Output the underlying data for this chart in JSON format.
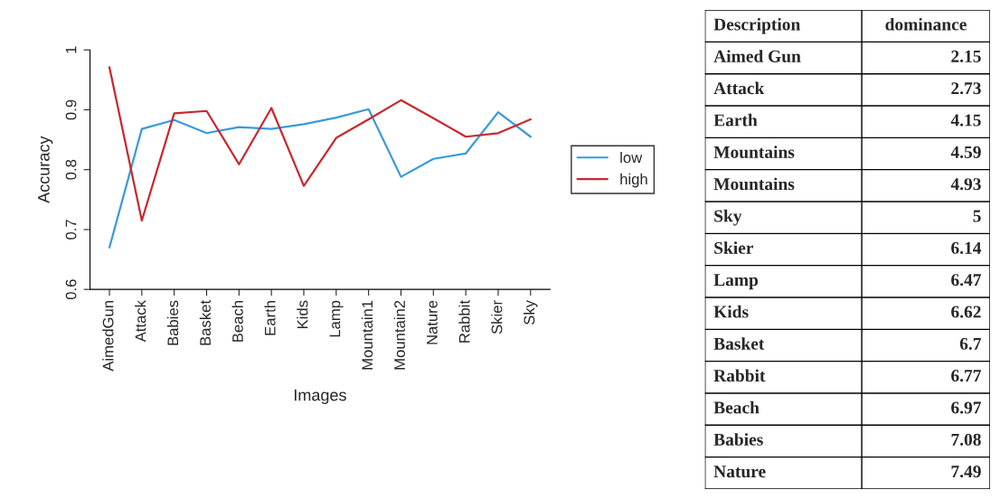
{
  "chart_data": [
    {
      "type": "line",
      "xlabel": "Images",
      "ylabel": "Accuracy",
      "categories": [
        "AimedGun",
        "Attack",
        "Babies",
        "Basket",
        "Beach",
        "Earth",
        "Kids",
        "Lamp",
        "Mountain1",
        "Mountain2",
        "Nature",
        "Rabbit",
        "Skier",
        "Sky"
      ],
      "series": [
        {
          "name": "low",
          "color": "#3a9ad9",
          "values": [
            0.67,
            0.868,
            0.883,
            0.861,
            0.871,
            0.868,
            0.876,
            0.887,
            0.901,
            0.788,
            0.818,
            0.827,
            0.896,
            0.855
          ]
        },
        {
          "name": "high",
          "color": "#c8282e",
          "values": [
            0.971,
            0.715,
            0.894,
            0.898,
            0.809,
            0.903,
            0.773,
            0.853,
            0.884,
            0.916,
            0.886,
            0.855,
            0.861,
            0.884
          ]
        }
      ],
      "ylim": [
        0.6,
        1
      ],
      "yticks": [
        0.6,
        0.7,
        0.8,
        0.9,
        1
      ],
      "grid": false,
      "legend": "right",
      "marker": "none",
      "line_style": "solid"
    },
    {
      "type": "other",
      "xlabel": "Description",
      "ylabel": "dominance",
      "categories": [
        "Aimed Gun",
        "Attack",
        "Earth",
        "Mountains",
        "Mountains",
        "Sky",
        "Skier",
        "Lamp",
        "Kids",
        "Basket",
        "Rabbit",
        "Beach",
        "Babies",
        "Nature"
      ],
      "values": [
        2.15,
        2.73,
        4.15,
        4.59,
        4.93,
        5,
        6.14,
        6.47,
        6.62,
        6.7,
        6.77,
        6.97,
        7.08,
        7.49
      ],
      "data_labels": true
    }
  ]
}
